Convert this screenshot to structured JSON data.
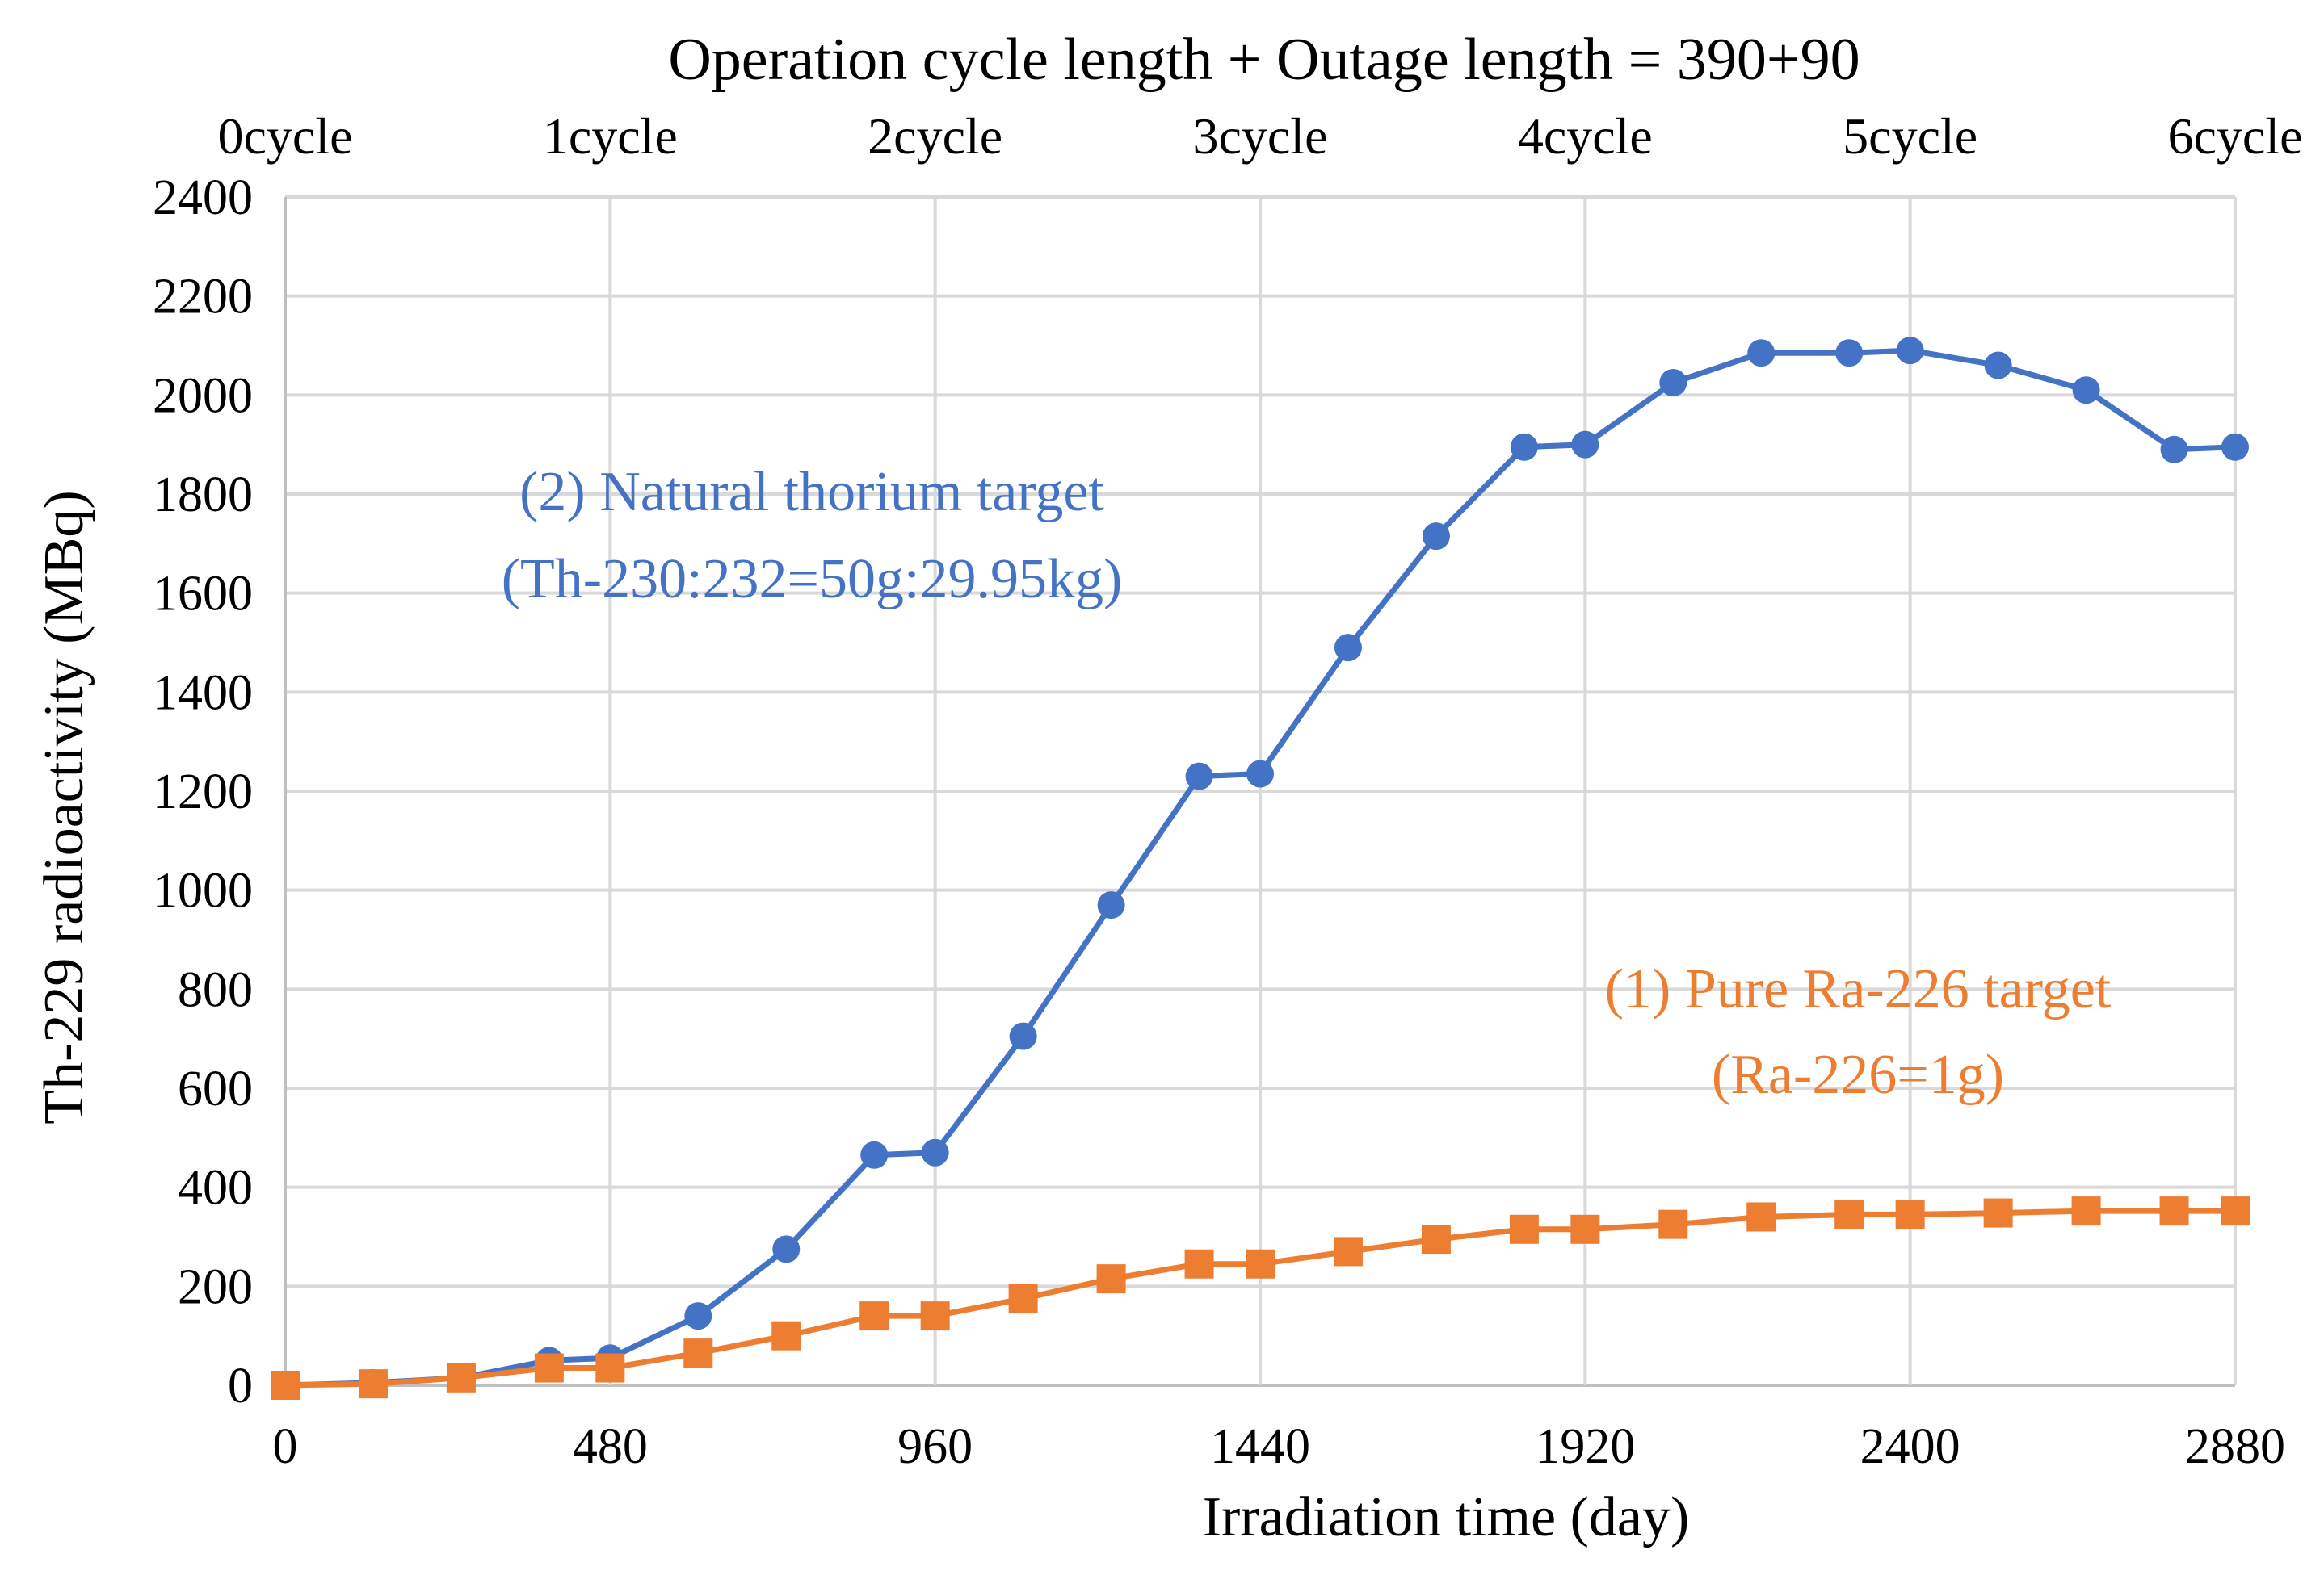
{
  "chart_data": {
    "type": "line",
    "title": "Operation  cycle  length + Outage  length = 390+90",
    "xlabel": "Irradiation time (day)",
    "ylabel": "Th-229 radioactivity (MBq)",
    "xlim": [
      0,
      2880
    ],
    "ylim": [
      0,
      2400
    ],
    "xticks": [
      0,
      480,
      960,
      1440,
      1920,
      2400,
      2880
    ],
    "yticks": [
      0,
      200,
      400,
      600,
      800,
      1000,
      1200,
      1400,
      1600,
      1800,
      2000,
      2200,
      2400
    ],
    "grid": true,
    "cycle_ticks": [
      {
        "label": "0cycle",
        "x": 0
      },
      {
        "label": "1cycle",
        "x": 480
      },
      {
        "label": "2cycle",
        "x": 960
      },
      {
        "label": "3cycle",
        "x": 1440
      },
      {
        "label": "4cycle",
        "x": 1920
      },
      {
        "label": "5cycle",
        "x": 2400
      },
      {
        "label": "6cycle",
        "x": 2880
      }
    ],
    "series": [
      {
        "name": "(2) Natural thorium target",
        "color": "#4472c4",
        "marker": "circle",
        "x": [
          0,
          130,
          260,
          390,
          480,
          610,
          740,
          870,
          960,
          1090,
          1220,
          1350,
          1440,
          1570,
          1700,
          1830,
          1920,
          2050,
          2180,
          2310,
          2400,
          2530,
          2660,
          2790,
          2880
        ],
        "values": [
          0,
          5,
          15,
          50,
          55,
          140,
          275,
          465,
          470,
          705,
          970,
          1230,
          1235,
          1490,
          1715,
          1895,
          1900,
          2025,
          2085,
          2085,
          2090,
          2060,
          2010,
          1890,
          1895
        ]
      },
      {
        "name": "(1) Pure Ra-226 target",
        "color": "#ed7d31",
        "marker": "square",
        "x": [
          0,
          130,
          260,
          390,
          480,
          610,
          740,
          870,
          960,
          1090,
          1220,
          1350,
          1440,
          1570,
          1700,
          1830,
          1920,
          2050,
          2180,
          2310,
          2400,
          2530,
          2660,
          2790,
          2880
        ],
        "values": [
          0,
          3,
          15,
          35,
          35,
          65,
          100,
          140,
          140,
          175,
          215,
          245,
          245,
          270,
          295,
          315,
          315,
          325,
          340,
          345,
          345,
          348,
          352,
          352,
          352
        ]
      }
    ],
    "annotations": [
      {
        "series": 0,
        "lines": [
          "(2) Natural  thorium  target",
          "(Th-230:232=50g:29.95kg)"
        ],
        "color": "#4472c4"
      },
      {
        "series": 1,
        "lines": [
          "(1) Pure  Ra-226  target",
          "(Ra-226=1g)"
        ],
        "color": "#ed7d31"
      }
    ]
  }
}
